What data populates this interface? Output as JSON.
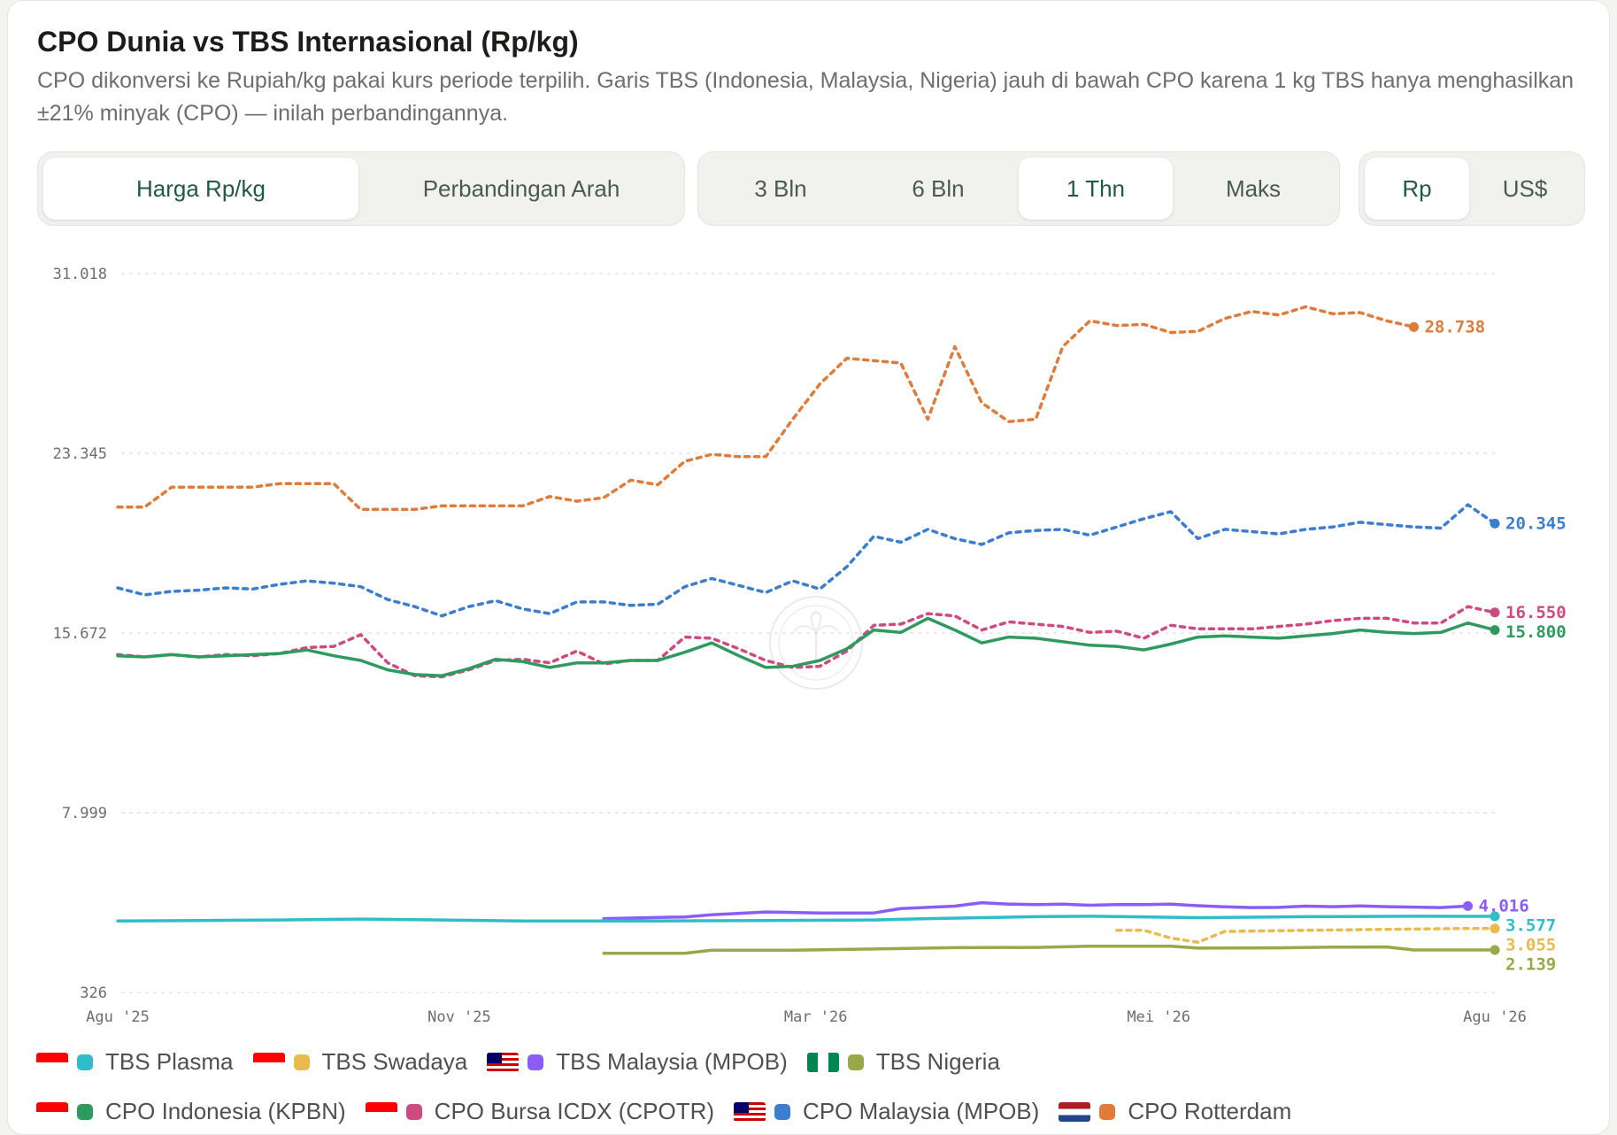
{
  "header": {
    "title": "CPO Dunia vs TBS Internasional (Rp/kg)",
    "subtitle": "CPO dikonversi ke Rupiah/kg pakai kurs periode terpilih. Garis TBS (Indonesia, Malaysia, Nigeria) jauh di bawah CPO karena 1 kg TBS hanya menghasilkan ±21% minyak (CPO) — inilah perbandingannya."
  },
  "view_tabs": {
    "items": [
      "Harga Rp/kg",
      "Perbandingan Arah"
    ],
    "active": "Harga Rp/kg"
  },
  "range_tabs": {
    "items": [
      "3 Bln",
      "6 Bln",
      "1 Thn",
      "Maks"
    ],
    "active": "1 Thn"
  },
  "currency_tabs": {
    "items": [
      "Rp",
      "US$"
    ],
    "active": "Rp"
  },
  "chart_data": {
    "type": "line",
    "title": "CPO Dunia vs TBS Internasional (Rp/kg)",
    "xlabel": "",
    "ylabel": "",
    "x_ticks": [
      "Agu '25",
      "Nov '25",
      "Mar '26",
      "Mei '26",
      "Agu '26"
    ],
    "y_ticks": [
      "31.018",
      "23.345",
      "15.672",
      "7.999",
      "326"
    ],
    "ylim": [
      326,
      31018
    ],
    "grid": true,
    "legend_position": "bottom",
    "series": [
      {
        "name": "CPO Rotterdam",
        "color": "#e07b39",
        "dash": true,
        "end_label": "28.738",
        "points": [
          [
            0,
            21050
          ],
          [
            1,
            21050
          ],
          [
            2,
            21900
          ],
          [
            3,
            21900
          ],
          [
            4,
            21900
          ],
          [
            5,
            21900
          ],
          [
            6,
            22050
          ],
          [
            7,
            22050
          ],
          [
            8,
            22050
          ],
          [
            9,
            20950
          ],
          [
            10,
            20950
          ],
          [
            11,
            20950
          ],
          [
            12,
            21100
          ],
          [
            13,
            21100
          ],
          [
            14,
            21100
          ],
          [
            15,
            21100
          ],
          [
            16,
            21500
          ],
          [
            17,
            21300
          ],
          [
            18,
            21450
          ],
          [
            19,
            22200
          ],
          [
            20,
            22000
          ],
          [
            21,
            23000
          ],
          [
            22,
            23300
          ],
          [
            23,
            23200
          ],
          [
            24,
            23200
          ],
          [
            25,
            24800
          ],
          [
            26,
            26300
          ],
          [
            27,
            27400
          ],
          [
            28,
            27300
          ],
          [
            29,
            27200
          ],
          [
            30,
            24800
          ],
          [
            31,
            27900
          ],
          [
            32,
            25500
          ],
          [
            33,
            24700
          ],
          [
            34,
            24800
          ],
          [
            35,
            27900
          ],
          [
            36,
            29000
          ],
          [
            37,
            28800
          ],
          [
            38,
            28850
          ],
          [
            39,
            28500
          ],
          [
            40,
            28550
          ],
          [
            41,
            29100
          ],
          [
            42,
            29400
          ],
          [
            43,
            29250
          ],
          [
            44,
            29600
          ],
          [
            45,
            29300
          ],
          [
            46,
            29350
          ],
          [
            47,
            29000
          ],
          [
            48,
            28738
          ]
        ]
      },
      {
        "name": "CPO Malaysia (MPOB)",
        "color": "#3b7ed1",
        "dash": true,
        "end_label": "20.345",
        "points": [
          [
            0,
            17600
          ],
          [
            1,
            17300
          ],
          [
            2,
            17450
          ],
          [
            3,
            17500
          ],
          [
            4,
            17600
          ],
          [
            5,
            17550
          ],
          [
            6,
            17750
          ],
          [
            7,
            17900
          ],
          [
            8,
            17800
          ],
          [
            9,
            17650
          ],
          [
            10,
            17100
          ],
          [
            11,
            16800
          ],
          [
            12,
            16400
          ],
          [
            13,
            16800
          ],
          [
            14,
            17050
          ],
          [
            15,
            16700
          ],
          [
            16,
            16500
          ],
          [
            17,
            17000
          ],
          [
            18,
            17000
          ],
          [
            19,
            16850
          ],
          [
            20,
            16900
          ],
          [
            21,
            17650
          ],
          [
            22,
            18000
          ],
          [
            23,
            17700
          ],
          [
            24,
            17400
          ],
          [
            25,
            17900
          ],
          [
            26,
            17550
          ],
          [
            27,
            18500
          ],
          [
            28,
            19800
          ],
          [
            29,
            19550
          ],
          [
            30,
            20100
          ],
          [
            31,
            19700
          ],
          [
            32,
            19450
          ],
          [
            33,
            19950
          ],
          [
            34,
            20050
          ],
          [
            35,
            20100
          ],
          [
            36,
            19850
          ],
          [
            37,
            20200
          ],
          [
            38,
            20550
          ],
          [
            39,
            20850
          ],
          [
            40,
            19700
          ],
          [
            41,
            20100
          ],
          [
            42,
            20000
          ],
          [
            43,
            19900
          ],
          [
            44,
            20100
          ],
          [
            45,
            20200
          ],
          [
            46,
            20400
          ],
          [
            47,
            20300
          ],
          [
            48,
            20200
          ],
          [
            49,
            20150
          ],
          [
            50,
            21150
          ],
          [
            51,
            20345
          ]
        ]
      },
      {
        "name": "CPO Bursa ICDX (CPOTR)",
        "color": "#cf4a80",
        "dash": true,
        "end_label": "16.550",
        "points": [
          [
            0,
            14750
          ],
          [
            1,
            14650
          ],
          [
            2,
            14750
          ],
          [
            3,
            14650
          ],
          [
            4,
            14750
          ],
          [
            5,
            14700
          ],
          [
            6,
            14800
          ],
          [
            7,
            15050
          ],
          [
            8,
            15100
          ],
          [
            9,
            15600
          ],
          [
            10,
            14400
          ],
          [
            11,
            13850
          ],
          [
            12,
            13800
          ],
          [
            13,
            14100
          ],
          [
            14,
            14500
          ],
          [
            15,
            14550
          ],
          [
            16,
            14400
          ],
          [
            17,
            14900
          ],
          [
            18,
            14350
          ],
          [
            19,
            14500
          ],
          [
            20,
            14500
          ],
          [
            21,
            15500
          ],
          [
            22,
            15450
          ],
          [
            23,
            15000
          ],
          [
            24,
            14500
          ],
          [
            25,
            14200
          ],
          [
            26,
            14250
          ],
          [
            27,
            14900
          ],
          [
            28,
            16000
          ],
          [
            29,
            16050
          ],
          [
            30,
            16500
          ],
          [
            31,
            16400
          ],
          [
            32,
            15800
          ],
          [
            33,
            16150
          ],
          [
            34,
            16050
          ],
          [
            35,
            15950
          ],
          [
            36,
            15700
          ],
          [
            37,
            15750
          ],
          [
            38,
            15450
          ],
          [
            39,
            16000
          ],
          [
            40,
            15850
          ],
          [
            41,
            15850
          ],
          [
            42,
            15850
          ],
          [
            43,
            15950
          ],
          [
            44,
            16050
          ],
          [
            45,
            16200
          ],
          [
            46,
            16300
          ],
          [
            47,
            16300
          ],
          [
            48,
            16100
          ],
          [
            49,
            16100
          ],
          [
            50,
            16800
          ],
          [
            51,
            16550
          ]
        ]
      },
      {
        "name": "CPO Indonesia (KPBN)",
        "color": "#2e9a5e",
        "dash": false,
        "end_label": "15.800",
        "points": [
          [
            0,
            14700
          ],
          [
            1,
            14650
          ],
          [
            2,
            14750
          ],
          [
            3,
            14650
          ],
          [
            4,
            14700
          ],
          [
            5,
            14750
          ],
          [
            6,
            14800
          ],
          [
            7,
            14950
          ],
          [
            8,
            14700
          ],
          [
            9,
            14500
          ],
          [
            10,
            14100
          ],
          [
            11,
            13900
          ],
          [
            12,
            13850
          ],
          [
            13,
            14150
          ],
          [
            14,
            14550
          ],
          [
            15,
            14450
          ],
          [
            16,
            14200
          ],
          [
            17,
            14400
          ],
          [
            18,
            14400
          ],
          [
            19,
            14500
          ],
          [
            20,
            14500
          ],
          [
            21,
            14850
          ],
          [
            22,
            15250
          ],
          [
            23,
            14700
          ],
          [
            24,
            14200
          ],
          [
            25,
            14250
          ],
          [
            26,
            14500
          ],
          [
            27,
            15000
          ],
          [
            28,
            15800
          ],
          [
            29,
            15700
          ],
          [
            30,
            16300
          ],
          [
            31,
            15800
          ],
          [
            32,
            15250
          ],
          [
            33,
            15500
          ],
          [
            34,
            15450
          ],
          [
            35,
            15300
          ],
          [
            36,
            15150
          ],
          [
            37,
            15100
          ],
          [
            38,
            14950
          ],
          [
            39,
            15200
          ],
          [
            40,
            15500
          ],
          [
            41,
            15550
          ],
          [
            42,
            15500
          ],
          [
            43,
            15450
          ],
          [
            44,
            15550
          ],
          [
            45,
            15650
          ],
          [
            46,
            15800
          ],
          [
            47,
            15700
          ],
          [
            48,
            15650
          ],
          [
            49,
            15700
          ],
          [
            50,
            16100
          ],
          [
            51,
            15800
          ]
        ]
      },
      {
        "name": "TBS Malaysia (MPOB)",
        "color": "#8b5cf6",
        "dash": false,
        "end_label": "4.016",
        "points": [
          [
            18,
            3480
          ],
          [
            21,
            3550
          ],
          [
            22,
            3640
          ],
          [
            24,
            3760
          ],
          [
            26,
            3720
          ],
          [
            28,
            3720
          ],
          [
            29,
            3910
          ],
          [
            30,
            3960
          ],
          [
            31,
            4010
          ],
          [
            32,
            4160
          ],
          [
            33,
            4100
          ],
          [
            34,
            4080
          ],
          [
            35,
            4100
          ],
          [
            36,
            4050
          ],
          [
            37,
            4080
          ],
          [
            38,
            4080
          ],
          [
            39,
            4100
          ],
          [
            40,
            4030
          ],
          [
            41,
            3980
          ],
          [
            42,
            3950
          ],
          [
            43,
            3960
          ],
          [
            44,
            4010
          ],
          [
            45,
            3990
          ],
          [
            46,
            4020
          ],
          [
            47,
            3990
          ],
          [
            48,
            3970
          ],
          [
            49,
            3950
          ],
          [
            50,
            4016
          ]
        ]
      },
      {
        "name": "TBS Plasma",
        "color": "#2fbdc9",
        "dash": false,
        "end_label": "3.577",
        "points": [
          [
            0,
            3380
          ],
          [
            3,
            3400
          ],
          [
            6,
            3420
          ],
          [
            9,
            3460
          ],
          [
            12,
            3420
          ],
          [
            15,
            3380
          ],
          [
            18,
            3380
          ],
          [
            20,
            3380
          ],
          [
            24,
            3400
          ],
          [
            28,
            3420
          ],
          [
            30,
            3480
          ],
          [
            32,
            3520
          ],
          [
            34,
            3560
          ],
          [
            36,
            3580
          ],
          [
            40,
            3520
          ],
          [
            44,
            3560
          ],
          [
            48,
            3580
          ],
          [
            51,
            3577
          ]
        ]
      },
      {
        "name": "TBS Swadaya",
        "color": "#e8bb4c",
        "dash": true,
        "end_label": "3.055",
        "points": [
          [
            37,
            2980
          ],
          [
            38,
            2980
          ],
          [
            39,
            2650
          ],
          [
            40,
            2470
          ],
          [
            41,
            2930
          ],
          [
            44,
            2980
          ],
          [
            47,
            3020
          ],
          [
            50,
            3060
          ],
          [
            51,
            3055
          ]
        ]
      },
      {
        "name": "TBS Nigeria",
        "color": "#9aa84a",
        "dash": false,
        "end_label": "2.139",
        "points": [
          [
            18,
            2000
          ],
          [
            21,
            2000
          ],
          [
            22,
            2130
          ],
          [
            25,
            2130
          ],
          [
            28,
            2180
          ],
          [
            31,
            2240
          ],
          [
            34,
            2250
          ],
          [
            36,
            2300
          ],
          [
            38,
            2300
          ],
          [
            39,
            2300
          ],
          [
            40,
            2220
          ],
          [
            43,
            2230
          ],
          [
            45,
            2260
          ],
          [
            47,
            2270
          ],
          [
            48,
            2140
          ],
          [
            51,
            2139
          ]
        ]
      }
    ]
  },
  "legend": {
    "row1": [
      {
        "label": "TBS Plasma",
        "color": "#2fbdc9",
        "flag": "id"
      },
      {
        "label": "TBS Swadaya",
        "color": "#e8bb4c",
        "flag": "id"
      },
      {
        "label": "TBS Malaysia (MPOB)",
        "color": "#8b5cf6",
        "flag": "my"
      },
      {
        "label": "TBS Nigeria",
        "color": "#9aa84a",
        "flag": "ng"
      }
    ],
    "row2": [
      {
        "label": "CPO Indonesia (KPBN)",
        "color": "#2e9a5e",
        "flag": "id"
      },
      {
        "label": "CPO Bursa ICDX (CPOTR)",
        "color": "#cf4a80",
        "flag": "id"
      },
      {
        "label": "CPO Malaysia (MPOB)",
        "color": "#3b7ed1",
        "flag": "my"
      },
      {
        "label": "CPO Rotterdam",
        "color": "#e07b39",
        "flag": "nl"
      }
    ]
  }
}
